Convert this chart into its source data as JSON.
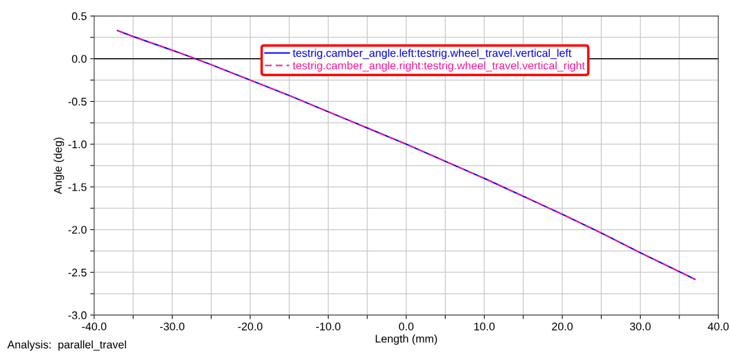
{
  "chart_data": {
    "type": "line",
    "xlabel": "Length (mm)",
    "ylabel": "Angle (deg)",
    "x": [
      -37,
      -35,
      -30,
      -27,
      -25,
      -20,
      -15,
      -10,
      -5,
      0,
      5,
      10,
      15,
      20,
      25,
      30,
      37
    ],
    "series": [
      {
        "name": "testrig.camber_angle.left:testrig.wheel_travel.vertical_left",
        "color": "#0000ff",
        "line_style": "solid",
        "values": [
          0.33,
          0.26,
          0.1,
          0.0,
          -0.07,
          -0.25,
          -0.43,
          -0.62,
          -0.81,
          -1.0,
          -1.2,
          -1.4,
          -1.61,
          -1.82,
          -2.04,
          -2.27,
          -2.58
        ]
      },
      {
        "name": "testrig.camber_angle.right:testrig.wheel_travel.vertical_right",
        "color": "#ff1493",
        "line_style": "dashed",
        "values": [
          0.33,
          0.26,
          0.1,
          0.0,
          -0.07,
          -0.25,
          -0.43,
          -0.62,
          -0.81,
          -1.0,
          -1.2,
          -1.4,
          -1.61,
          -1.82,
          -2.04,
          -2.27,
          -2.58
        ]
      }
    ],
    "xlim": [
      -40,
      40
    ],
    "ylim": [
      -3.0,
      0.5
    ],
    "xticks": [
      {
        "value": -40,
        "label": "-40.0"
      },
      {
        "value": -35,
        "label": null
      },
      {
        "value": -30,
        "label": "-30.0"
      },
      {
        "value": -25,
        "label": null
      },
      {
        "value": -20,
        "label": "-20.0"
      },
      {
        "value": -15,
        "label": null
      },
      {
        "value": -10,
        "label": "-10.0"
      },
      {
        "value": -5,
        "label": null
      },
      {
        "value": 0,
        "label": "0.0"
      },
      {
        "value": 5,
        "label": null
      },
      {
        "value": 10,
        "label": "10.0"
      },
      {
        "value": 15,
        "label": null
      },
      {
        "value": 20,
        "label": "20.0"
      },
      {
        "value": 25,
        "label": null
      },
      {
        "value": 30,
        "label": "30.0"
      },
      {
        "value": 35,
        "label": null
      },
      {
        "value": 40,
        "label": "40.0"
      }
    ],
    "yticks": [
      {
        "value": -3.0,
        "label": "-3.0"
      },
      {
        "value": -2.75,
        "label": null
      },
      {
        "value": -2.5,
        "label": "-2.5"
      },
      {
        "value": -2.25,
        "label": null
      },
      {
        "value": -2.0,
        "label": "-2.0"
      },
      {
        "value": -1.75,
        "label": null
      },
      {
        "value": -1.5,
        "label": "-1.5"
      },
      {
        "value": -1.25,
        "label": null
      },
      {
        "value": -1.0,
        "label": "-1.0"
      },
      {
        "value": -0.75,
        "label": null
      },
      {
        "value": -0.5,
        "label": "-0.5"
      },
      {
        "value": -0.25,
        "label": null
      },
      {
        "value": 0.0,
        "label": "0.0"
      },
      {
        "value": 0.25,
        "label": null
      },
      {
        "value": 0.5,
        "label": "0.5"
      }
    ],
    "ref_lines": [
      {
        "axis": "y",
        "value": 0,
        "color": "#000000",
        "line_style": "solid"
      }
    ],
    "grid": true,
    "legend": "top",
    "marker": "none",
    "annotations": [
      "Analysis:  parallel_travel"
    ]
  }
}
